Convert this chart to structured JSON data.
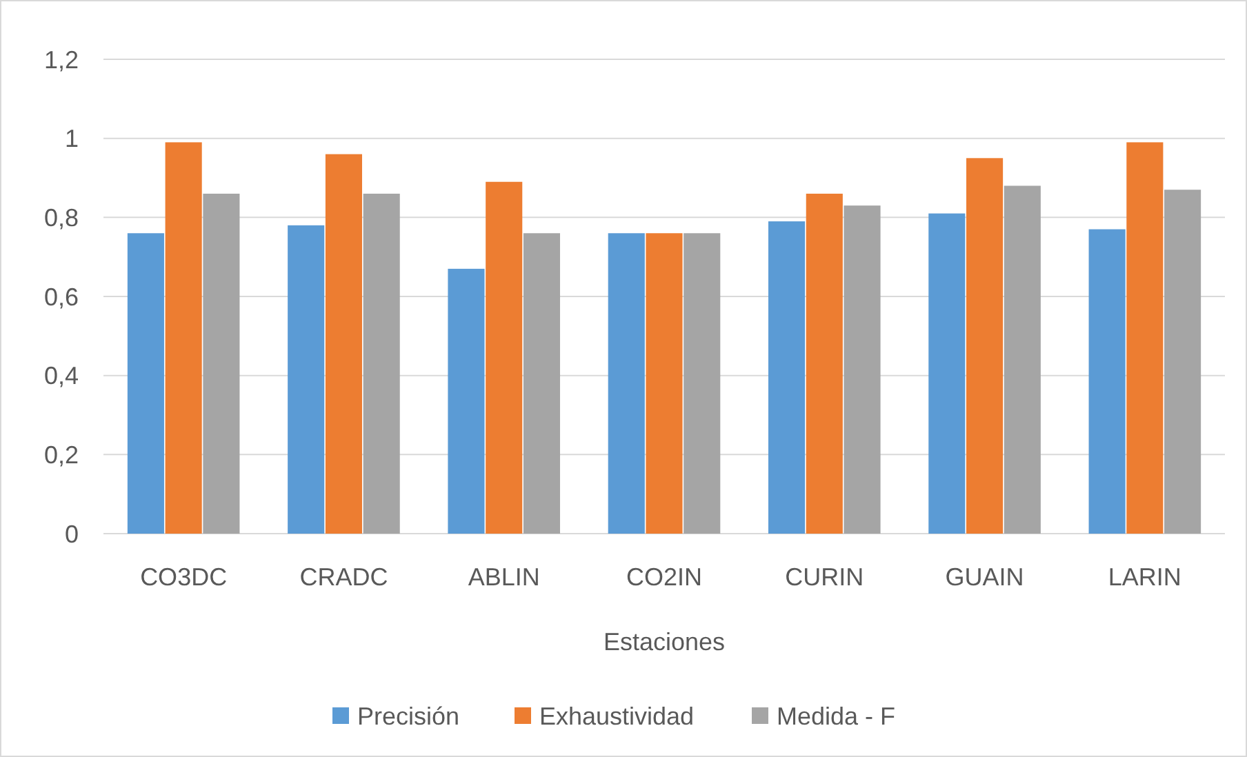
{
  "chart_data": {
    "type": "bar",
    "xlabel": "Estaciones",
    "categories": [
      "CO3DC",
      "CRADC",
      "ABLIN",
      "CO2IN",
      "CURIN",
      "GUAIN",
      "LARIN"
    ],
    "series": [
      {
        "name": "Precisión",
        "color": "#5b9bd5",
        "values": [
          0.76,
          0.78,
          0.67,
          0.76,
          0.79,
          0.81,
          0.77
        ]
      },
      {
        "name": "Exhaustividad",
        "color": "#ed7d31",
        "values": [
          0.99,
          0.96,
          0.89,
          0.76,
          0.86,
          0.95,
          0.99
        ]
      },
      {
        "name": "Medida - F",
        "color": "#a5a5a5",
        "values": [
          0.86,
          0.86,
          0.76,
          0.76,
          0.83,
          0.88,
          0.87
        ]
      }
    ],
    "ylim": [
      0,
      1.2
    ],
    "yticks": [
      {
        "value": 0,
        "label": "0"
      },
      {
        "value": 0.2,
        "label": "0,2"
      },
      {
        "value": 0.4,
        "label": "0,4"
      },
      {
        "value": 0.6,
        "label": "0,6"
      },
      {
        "value": 0.8,
        "label": "0,8"
      },
      {
        "value": 1,
        "label": "1"
      },
      {
        "value": 1.2,
        "label": "1,2"
      }
    ],
    "grid": "y",
    "legend": "bottom"
  }
}
